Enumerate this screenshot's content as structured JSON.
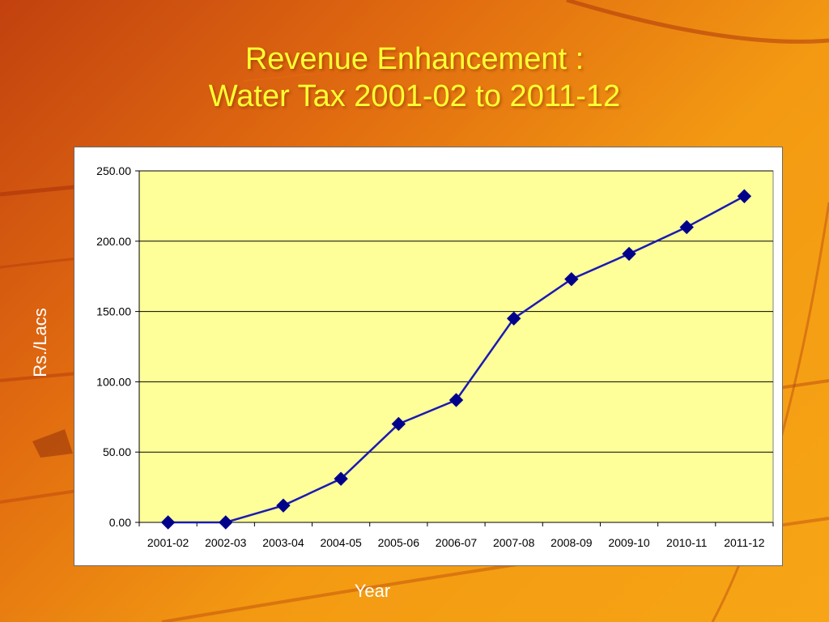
{
  "slide": {
    "title_line1": "Revenue Enhancement :",
    "title_line2": "Water Tax 2001-02 to 2011-12"
  },
  "colors": {
    "title": "#ffff33",
    "plot_background": "#ffff99",
    "series_line": "#1a1ab4",
    "marker": "#00008b"
  },
  "chart_data": {
    "type": "line",
    "title": "",
    "xlabel": "Year",
    "ylabel": "Rs./Lacs",
    "categories": [
      "2001-02",
      "2002-03",
      "2003-04",
      "2004-05",
      "2005-06",
      "2006-07",
      "2007-08",
      "2008-09",
      "2009-10",
      "2010-11",
      "2011-12"
    ],
    "series": [
      {
        "values": [
          0,
          0,
          12,
          31,
          70,
          87,
          145,
          173,
          191,
          210,
          232
        ]
      }
    ],
    "ylim": [
      0,
      250
    ],
    "yticks": [
      "0.00",
      "50.00",
      "100.00",
      "150.00",
      "200.00",
      "250.00"
    ],
    "grid": true,
    "legend": "none",
    "marker": "diamond"
  }
}
